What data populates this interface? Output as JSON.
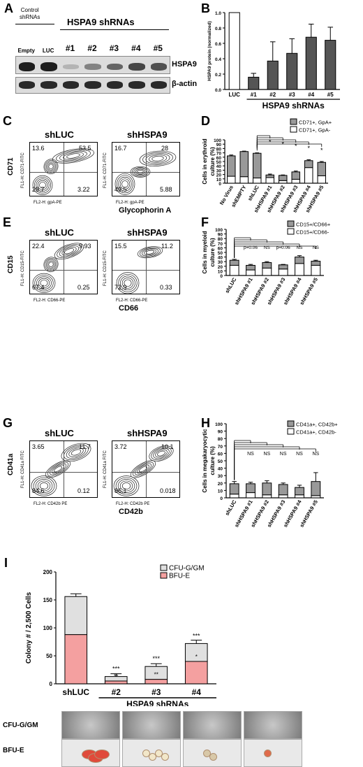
{
  "panels": {
    "A": {
      "label": "A",
      "control_header": "Control\nshRNAs",
      "hspa9_header": "HSPA9 shRNAs",
      "lanes": [
        "Empty",
        "LUC",
        "#1",
        "#2",
        "#3",
        "#4",
        "#5"
      ],
      "row_labels": [
        "HSPA9",
        "β-actin"
      ],
      "hspa9_intensity": [
        0.95,
        0.95,
        0.2,
        0.45,
        0.6,
        0.75,
        0.7
      ]
    },
    "B": {
      "label": "B",
      "group_label": "HSPA9 shRNAs"
    },
    "C": {
      "label": "C",
      "left_title": "shLUC",
      "right_title": "shHSPA9",
      "ylabel": "CD71",
      "xlabel": "Glycophorin A",
      "left_q": [
        "13.6",
        "53.5",
        "29.7",
        "3.22"
      ],
      "right_q": [
        "16.7",
        "28",
        "49.5",
        "5.88"
      ],
      "left_axis_y": "FL1-H: CD71-FITC",
      "left_axis_x": "FL2-H: gpA-PE"
    },
    "D": {
      "label": "D"
    },
    "E": {
      "label": "E",
      "left_title": "shLUC",
      "right_title": "shHSPA9",
      "ylabel": "CD15",
      "xlabel": "CD66",
      "left_q": [
        "22.4",
        "9.93",
        "67.4",
        "0.25"
      ],
      "right_q": [
        "15.5",
        "11.2",
        "72.9",
        "0.33"
      ],
      "left_axis_y": "FL1-H: CD15-FITC",
      "left_axis_x": "FL2-H: CD66-PE"
    },
    "F": {
      "label": "F"
    },
    "G": {
      "label": "G",
      "left_title": "shLUC",
      "right_title": "shHSPA9",
      "ylabel": "CD41a",
      "xlabel": "CD42b",
      "left_q": [
        "3.65",
        "11.7",
        "84.6",
        "0.12"
      ],
      "right_q": [
        "3.72",
        "10.1",
        "86.1",
        "0.018"
      ],
      "left_axis_y": "FL1-H: CD41a FITC",
      "left_axis_x": "FL2-H: CD42b PE"
    },
    "H": {
      "label": "H"
    },
    "I": {
      "label": "I",
      "group_label": "HSPA9 shRNAs",
      "row_labels": [
        "CFU-G/GM",
        "BFU-E"
      ]
    }
  },
  "chart_data": [
    {
      "id": "B",
      "type": "bar",
      "ylabel": "HSPA9 protein (normalized)",
      "categories": [
        "LUC",
        "#1",
        "#2",
        "#3",
        "#4",
        "#5"
      ],
      "values": [
        1.0,
        0.16,
        0.37,
        0.47,
        0.68,
        0.64
      ],
      "errors": [
        0,
        0.05,
        0.25,
        0.19,
        0.17,
        0.17
      ],
      "ylim": [
        0,
        1.0
      ],
      "yticks": [
        "0.0",
        "0.2",
        "0.4",
        "0.6",
        "0.8",
        "1.0"
      ]
    },
    {
      "id": "D",
      "type": "bar",
      "stacked": true,
      "ylabel": "Cells in erythroid culture (%)",
      "categories": [
        "No Virus",
        "shEMPTY",
        "shLUC",
        "shHSPA9 #1",
        "shHSPA9 #2",
        "shHSPA9 #3",
        "shHSPA9 #4",
        "shHSPA9 #5"
      ],
      "series": [
        {
          "name": "CD71+, GpA-",
          "values": [
            16,
            15,
            12,
            13,
            6,
            9,
            36,
            17
          ],
          "color": "#ffffff"
        },
        {
          "name": "CD71+, GpA+",
          "values": [
            47,
            58,
            57,
            6,
            12,
            17,
            16,
            31
          ],
          "color": "#999999"
        }
      ],
      "ylim": [
        0,
        100
      ],
      "yticks": [
        "0",
        "10",
        "20",
        "30",
        "40",
        "50",
        "60",
        "70",
        "80",
        "90",
        "100"
      ],
      "annotations": [
        "*",
        "*",
        "*",
        "*",
        "*"
      ]
    },
    {
      "id": "F",
      "type": "bar",
      "stacked": true,
      "ylabel": "Cells in myeloid culture (%)",
      "categories": [
        "shLUC",
        "shHSPA9 #1",
        "shHSPA9 #2",
        "shHSPA9 #3",
        "shHSPA9 #4",
        "shHSPA9 #5"
      ],
      "series": [
        {
          "name": "CD15+/CD66-",
          "values": [
            22,
            12,
            16,
            14,
            26,
            22
          ],
          "color": "#ffffff"
        },
        {
          "name": "CD15+/CD66+",
          "values": [
            11,
            10,
            12,
            9,
            14,
            9
          ],
          "color": "#999999"
        }
      ],
      "ylim": [
        0,
        100
      ],
      "yticks": [
        "0",
        "10",
        "20",
        "30",
        "40",
        "50",
        "60",
        "70",
        "80",
        "90",
        "100"
      ],
      "annotations": [
        "p=0.06",
        "NS",
        "p=0.06",
        "NS",
        "NS"
      ]
    },
    {
      "id": "H",
      "type": "bar",
      "stacked": true,
      "ylabel": "Cells in megakaryocytic culture (%)",
      "categories": [
        "shLUC",
        "shHSPA9 #1",
        "shHSPA9 #2",
        "shHSPA9 #3",
        "shHSPA9 #4",
        "shHSPA9 #5"
      ],
      "series": [
        {
          "name": "CD41a+, CD42b-",
          "values": [
            5,
            7,
            4,
            4,
            4,
            3
          ],
          "color": "#ffffff"
        },
        {
          "name": "CD41a+, CD42b+",
          "values": [
            14,
            12,
            16,
            14,
            10,
            19
          ],
          "color": "#999999"
        }
      ],
      "ylim": [
        0,
        100
      ],
      "yticks": [
        "0",
        "10",
        "20",
        "30",
        "40",
        "50",
        "60",
        "70",
        "80",
        "90",
        "100"
      ],
      "annotations": [
        "NS",
        "NS",
        "NS",
        "NS",
        "NS"
      ]
    },
    {
      "id": "I",
      "type": "bar",
      "stacked": true,
      "ylabel": "Colony # / 2,500 Cells",
      "categories": [
        "shLUC",
        "#2",
        "#3",
        "#4"
      ],
      "series": [
        {
          "name": "BFU-E",
          "values": [
            88,
            5,
            8,
            40
          ],
          "color": "#f4a0a0"
        },
        {
          "name": "CFU-G/GM",
          "values": [
            68,
            8,
            23,
            32
          ],
          "color": "#e0e0e0"
        }
      ],
      "ylim": [
        0,
        200
      ],
      "yticks": [
        "0",
        "50",
        "100",
        "150",
        "200"
      ],
      "annotations": [
        "***",
        "***",
        "***"
      ],
      "inner_annotations": [
        "**",
        "**",
        "*"
      ]
    }
  ]
}
